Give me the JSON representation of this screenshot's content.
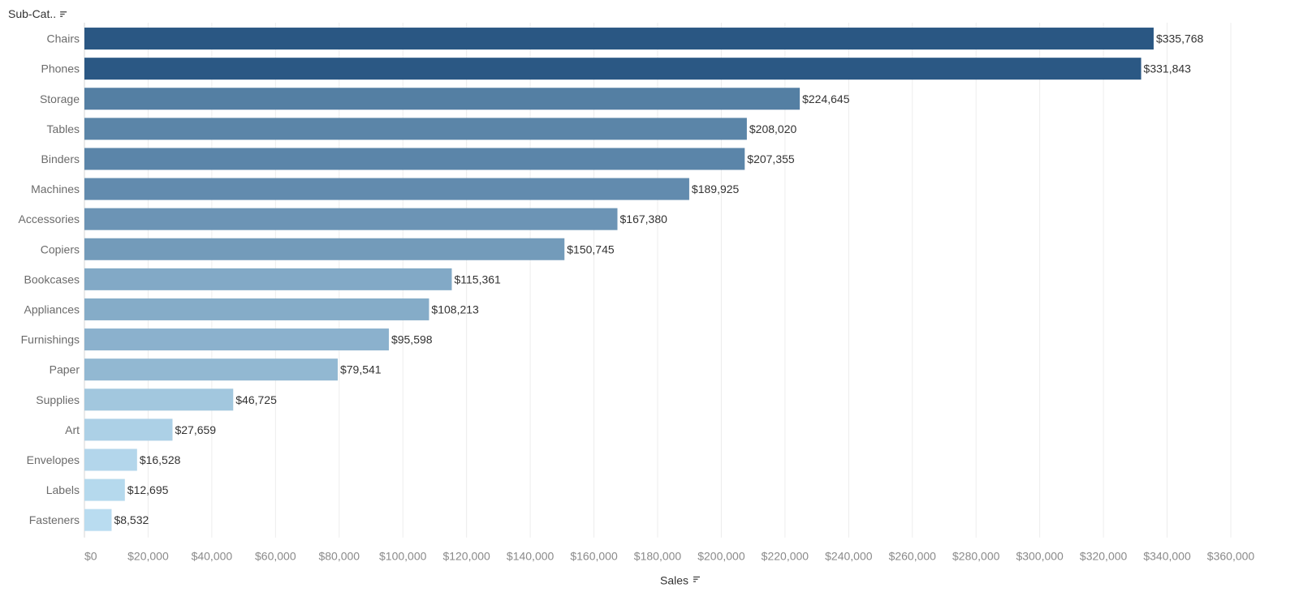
{
  "header": {
    "dimension_label": "Sub-Cat.."
  },
  "chart_data": {
    "type": "bar",
    "orientation": "horizontal",
    "categories": [
      "Chairs",
      "Phones",
      "Storage",
      "Tables",
      "Binders",
      "Machines",
      "Accessories",
      "Copiers",
      "Bookcases",
      "Appliances",
      "Furnishings",
      "Paper",
      "Supplies",
      "Art",
      "Envelopes",
      "Labels",
      "Fasteners"
    ],
    "values": [
      335768,
      331843,
      224645,
      208020,
      207355,
      189925,
      167380,
      150745,
      115361,
      108213,
      95598,
      79541,
      46725,
      27659,
      16528,
      12695,
      8532
    ],
    "value_labels": [
      "$335,768",
      "$331,843",
      "$224,645",
      "$208,020",
      "$207,355",
      "$189,925",
      "$167,380",
      "$150,745",
      "$115,361",
      "$108,213",
      "$95,598",
      "$79,541",
      "$46,725",
      "$27,659",
      "$16,528",
      "$12,695",
      "$8,532"
    ],
    "xlabel": "Sales",
    "ylabel": "Sub-Cat..",
    "xlim": [
      0,
      360000
    ],
    "x_ticks": [
      0,
      20000,
      40000,
      60000,
      80000,
      100000,
      120000,
      140000,
      160000,
      180000,
      200000,
      220000,
      240000,
      260000,
      280000,
      300000,
      320000,
      340000,
      360000
    ],
    "x_tick_labels": [
      "$0",
      "$20,000",
      "$40,000",
      "$60,000",
      "$80,000",
      "$100,000",
      "$120,000",
      "$140,000",
      "$160,000",
      "$180,000",
      "$200,000",
      "$220,000",
      "$240,000",
      "$260,000",
      "$280,000",
      "$300,000",
      "$320,000",
      "$340,000",
      "$360,000"
    ],
    "grid": true,
    "color_scale": {
      "low": "#b9dcf0",
      "high": "#2a5783"
    }
  }
}
